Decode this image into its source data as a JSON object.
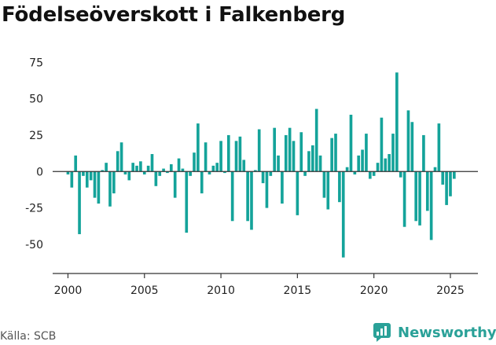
{
  "title": "Födelseöverskott i Falkenberg",
  "source": "Källa: SCB",
  "brand": "Newsworthy",
  "colors": {
    "bar": "#14a39a",
    "brand": "#2aa198",
    "axis": "#333333",
    "text": "#222222"
  },
  "chart_data": {
    "type": "bar",
    "title": "Födelseöverskott i Falkenberg",
    "xlabel": "",
    "ylabel": "",
    "grid": false,
    "legend": "none",
    "xlim": [
      1999.0,
      2026.8
    ],
    "ylim": [
      -70,
      80
    ],
    "xticks": [
      "2000",
      "2005",
      "2010",
      "2015",
      "2020",
      "2025"
    ],
    "yticks": [
      "75",
      "50",
      "25",
      "0",
      "-25",
      "-50"
    ],
    "frequency": "quarterly",
    "x_start": "2000 Q1",
    "values": [
      -2,
      -11,
      11,
      -43,
      -3,
      -11,
      -6,
      -18,
      -22,
      1,
      6,
      -24,
      -15,
      14,
      20,
      -2,
      -6,
      6,
      4,
      7,
      -2,
      4,
      12,
      -10,
      -3,
      2,
      -1,
      5,
      -18,
      9,
      2,
      -42,
      -3,
      13,
      33,
      -15,
      20,
      -2,
      4,
      6,
      21,
      -1,
      25,
      -34,
      21,
      24,
      8,
      -34,
      -40,
      1,
      29,
      -8,
      -25,
      -3,
      30,
      11,
      -22,
      25,
      30,
      21,
      -30,
      27,
      -3,
      14,
      18,
      43,
      11,
      -18,
      -26,
      23,
      26,
      -21,
      -59,
      3,
      39,
      -2,
      11,
      15,
      26,
      -5,
      -3,
      6,
      37,
      9,
      12,
      26,
      68,
      -4,
      -38,
      42,
      34,
      -34,
      -37,
      25,
      -27,
      -47,
      3,
      33,
      -9,
      -23,
      -17,
      -5
    ]
  }
}
